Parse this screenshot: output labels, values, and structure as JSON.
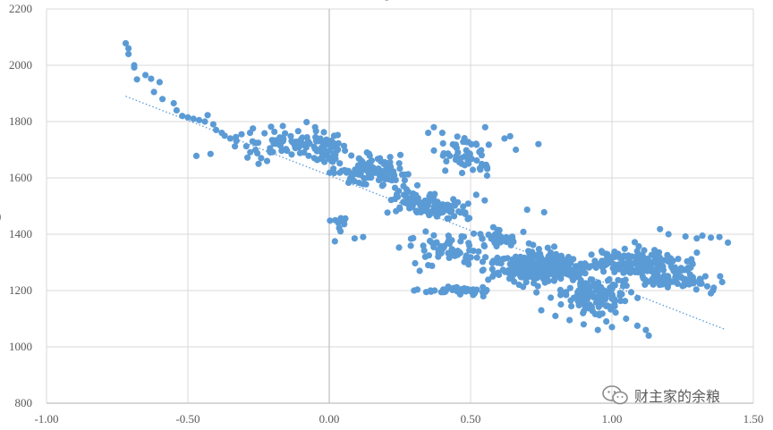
{
  "chart_data": {
    "type": "scatter",
    "title": "",
    "xlabel": "",
    "ylabel": "",
    "xlim": [
      -1.0,
      1.5
    ],
    "ylim": [
      800,
      2200
    ],
    "x_ticks": [
      "-1.00",
      "-0.50",
      "0.00",
      "0.50",
      "1.00",
      "1.50"
    ],
    "y_ticks": [
      "800",
      "1000",
      "1200",
      "1400",
      "1600",
      "1800",
      "2000",
      "2200"
    ],
    "grid": true,
    "legend": "none",
    "trendline": {
      "type": "linear",
      "from": [
        -0.72,
        1890
      ],
      "to": [
        1.4,
        1062
      ],
      "color": "#5b9bd5"
    },
    "point_color": "#5b9bd5",
    "clusters": [
      {
        "cx": -0.18,
        "cy": 1720,
        "sx": 0.12,
        "sy": 40,
        "n": 60
      },
      {
        "cx": 0.0,
        "cy": 1700,
        "sx": 0.06,
        "sy": 50,
        "n": 60
      },
      {
        "cx": 0.15,
        "cy": 1620,
        "sx": 0.1,
        "sy": 40,
        "n": 110
      },
      {
        "cx": 0.3,
        "cy": 1520,
        "sx": 0.08,
        "sy": 35,
        "n": 70
      },
      {
        "cx": 0.42,
        "cy": 1490,
        "sx": 0.06,
        "sy": 25,
        "n": 50
      },
      {
        "cx": 0.48,
        "cy": 1690,
        "sx": 0.08,
        "sy": 55,
        "n": 55
      },
      {
        "cx": 0.42,
        "cy": 1350,
        "sx": 0.12,
        "sy": 40,
        "n": 60
      },
      {
        "cx": 0.45,
        "cy": 1200,
        "sx": 0.1,
        "sy": 10,
        "n": 50
      },
      {
        "cx": 0.75,
        "cy": 1280,
        "sx": 0.12,
        "sy": 45,
        "n": 300
      },
      {
        "cx": 0.95,
        "cy": 1180,
        "sx": 0.1,
        "sy": 50,
        "n": 130
      },
      {
        "cx": 1.08,
        "cy": 1300,
        "sx": 0.14,
        "sy": 35,
        "n": 150
      },
      {
        "cx": 1.22,
        "cy": 1240,
        "sx": 0.1,
        "sy": 30,
        "n": 80
      },
      {
        "cx": 0.6,
        "cy": 1390,
        "sx": 0.06,
        "sy": 25,
        "n": 40
      },
      {
        "cx": 0.05,
        "cy": 1440,
        "sx": 0.03,
        "sy": 30,
        "n": 10
      }
    ],
    "points": [
      [
        -0.72,
        2078
      ],
      [
        -0.71,
        2060
      ],
      [
        -0.71,
        2040
      ],
      [
        -0.69,
        2000
      ],
      [
        -0.69,
        1992
      ],
      [
        -0.68,
        1950
      ],
      [
        -0.65,
        1965
      ],
      [
        -0.63,
        1952
      ],
      [
        -0.62,
        1905
      ],
      [
        -0.6,
        1940
      ],
      [
        -0.59,
        1880
      ],
      [
        -0.55,
        1865
      ],
      [
        -0.54,
        1840
      ],
      [
        -0.52,
        1820
      ],
      [
        -0.5,
        1815
      ],
      [
        -0.48,
        1810
      ],
      [
        -0.46,
        1805
      ],
      [
        -0.44,
        1800
      ],
      [
        -0.43,
        1823
      ],
      [
        -0.41,
        1790
      ],
      [
        -0.4,
        1770
      ],
      [
        -0.38,
        1760
      ],
      [
        -0.37,
        1750
      ],
      [
        -0.35,
        1740
      ],
      [
        -0.47,
        1678
      ],
      [
        -0.42,
        1685
      ],
      [
        -0.33,
        1745
      ],
      [
        -0.31,
        1755
      ],
      [
        -0.28,
        1760
      ],
      [
        -0.25,
        1650
      ],
      [
        -0.22,
        1660
      ],
      [
        -0.08,
        1798
      ],
      [
        -0.05,
        1780
      ],
      [
        0.74,
        1720
      ],
      [
        0.09,
        1385
      ],
      [
        0.02,
        1375
      ],
      [
        0.12,
        1390
      ],
      [
        0.35,
        1760
      ],
      [
        0.37,
        1780
      ],
      [
        0.4,
        1760
      ],
      [
        0.62,
        1740
      ],
      [
        0.64,
        1748
      ],
      [
        0.66,
        1700
      ],
      [
        0.52,
        1540
      ],
      [
        0.55,
        1520
      ],
      [
        0.7,
        1487
      ],
      [
        0.76,
        1478
      ],
      [
        0.32,
        1270
      ],
      [
        0.3,
        1200
      ],
      [
        0.35,
        1290
      ],
      [
        1.17,
        1418
      ],
      [
        1.2,
        1400
      ],
      [
        1.26,
        1392
      ],
      [
        1.3,
        1385
      ],
      [
        1.32,
        1395
      ],
      [
        1.35,
        1388
      ],
      [
        1.38,
        1390
      ],
      [
        1.41,
        1370
      ],
      [
        1.39,
        1230
      ],
      [
        1.36,
        1210
      ],
      [
        1.35,
        1190
      ],
      [
        1.12,
        1060
      ],
      [
        1.09,
        1075
      ],
      [
        1.0,
        1070
      ],
      [
        0.95,
        1060
      ],
      [
        0.9,
        1080
      ],
      [
        0.85,
        1095
      ],
      [
        0.8,
        1110
      ],
      [
        0.75,
        1130
      ],
      [
        1.13,
        1040
      ],
      [
        0.98,
        1090
      ],
      [
        1.05,
        1100
      ]
    ]
  },
  "watermark": {
    "icon": "wechat-icon",
    "text": "财主家的余粮"
  },
  "partial_text": {
    "title_fragment": "g",
    "ylabel_fragment": ")"
  }
}
